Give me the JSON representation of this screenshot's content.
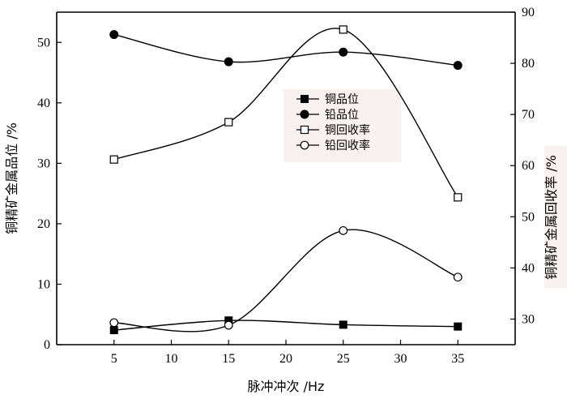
{
  "chart_data": {
    "type": "line",
    "x": [
      5,
      15,
      25,
      35
    ],
    "xlabel": "脉冲冲次 /Hz",
    "ylabel_left": "铜精矿金属品位 /%",
    "ylabel_right": "铜精矿金属回收率 /%",
    "xlim": [
      0,
      40
    ],
    "ylim_left": [
      0,
      55
    ],
    "ylim_right": [
      25,
      90
    ],
    "xticks": [
      5,
      10,
      15,
      20,
      25,
      30,
      35
    ],
    "yticks_left": [
      0,
      10,
      20,
      30,
      40,
      50
    ],
    "yticks_right": [
      30,
      40,
      50,
      60,
      70,
      80,
      90
    ],
    "legend_position": "center",
    "series": [
      {
        "name": "铜品位",
        "axis": "left",
        "marker": "filled-square",
        "values": [
          2.4,
          4.0,
          3.3,
          3.0
        ]
      },
      {
        "name": "铅品位",
        "axis": "left",
        "marker": "filled-circle",
        "values": [
          51.3,
          46.8,
          48.4,
          46.2
        ]
      },
      {
        "name": "铜回收率",
        "axis": "right",
        "marker": "open-square",
        "values": [
          61.2,
          68.5,
          86.6,
          53.8
        ]
      },
      {
        "name": "铅回收率",
        "axis": "right",
        "marker": "open-circle",
        "values": [
          29.3,
          28.8,
          47.3,
          38.2
        ]
      }
    ]
  }
}
